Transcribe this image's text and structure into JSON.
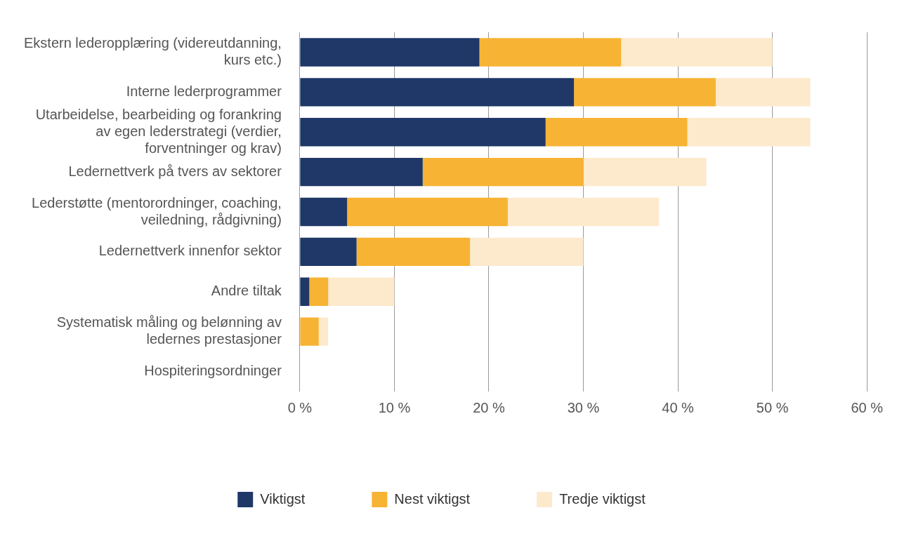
{
  "chart_data": {
    "type": "bar",
    "orientation": "horizontal",
    "stacked": true,
    "categories": [
      "Ekstern lederopplæring (videreutdanning, kurs etc.)",
      "Interne lederprogrammer",
      "Utarbeidelse, bearbeiding og forankring av egen lederstrategi (verdier, forventninger og krav)",
      "Ledernettverk på tvers av sektorer",
      "Lederstøtte (mentorordninger, coaching, veiledning, rådgivning)",
      "Ledernettverk innenfor sektor",
      "Andre tiltak",
      "Systematisk måling og belønning av ledernes prestasjoner",
      "Hospiteringsordninger"
    ],
    "series": [
      {
        "name": "Viktigst",
        "color": "#1f3868",
        "values": [
          19,
          29,
          26,
          13,
          5,
          6,
          1,
          0,
          0
        ]
      },
      {
        "name": "Nest viktigst",
        "color": "#f7b334",
        "values": [
          15,
          15,
          15,
          17,
          17,
          12,
          2,
          2,
          0
        ]
      },
      {
        "name": "Tredje viktigst",
        "color": "#fde9cc",
        "values": [
          16,
          10,
          13,
          13,
          16,
          12,
          7,
          1,
          0
        ]
      }
    ],
    "xlim": [
      0,
      60
    ],
    "xticks": [
      {
        "value": 0,
        "label": "0 %"
      },
      {
        "value": 10,
        "label": "10 %"
      },
      {
        "value": 20,
        "label": "20 %"
      },
      {
        "value": 30,
        "label": "30 %"
      },
      {
        "value": 40,
        "label": "40 %"
      },
      {
        "value": 50,
        "label": "50 %"
      },
      {
        "value": 60,
        "label": "60 %"
      }
    ],
    "grid": "x",
    "legend": "bottom"
  }
}
